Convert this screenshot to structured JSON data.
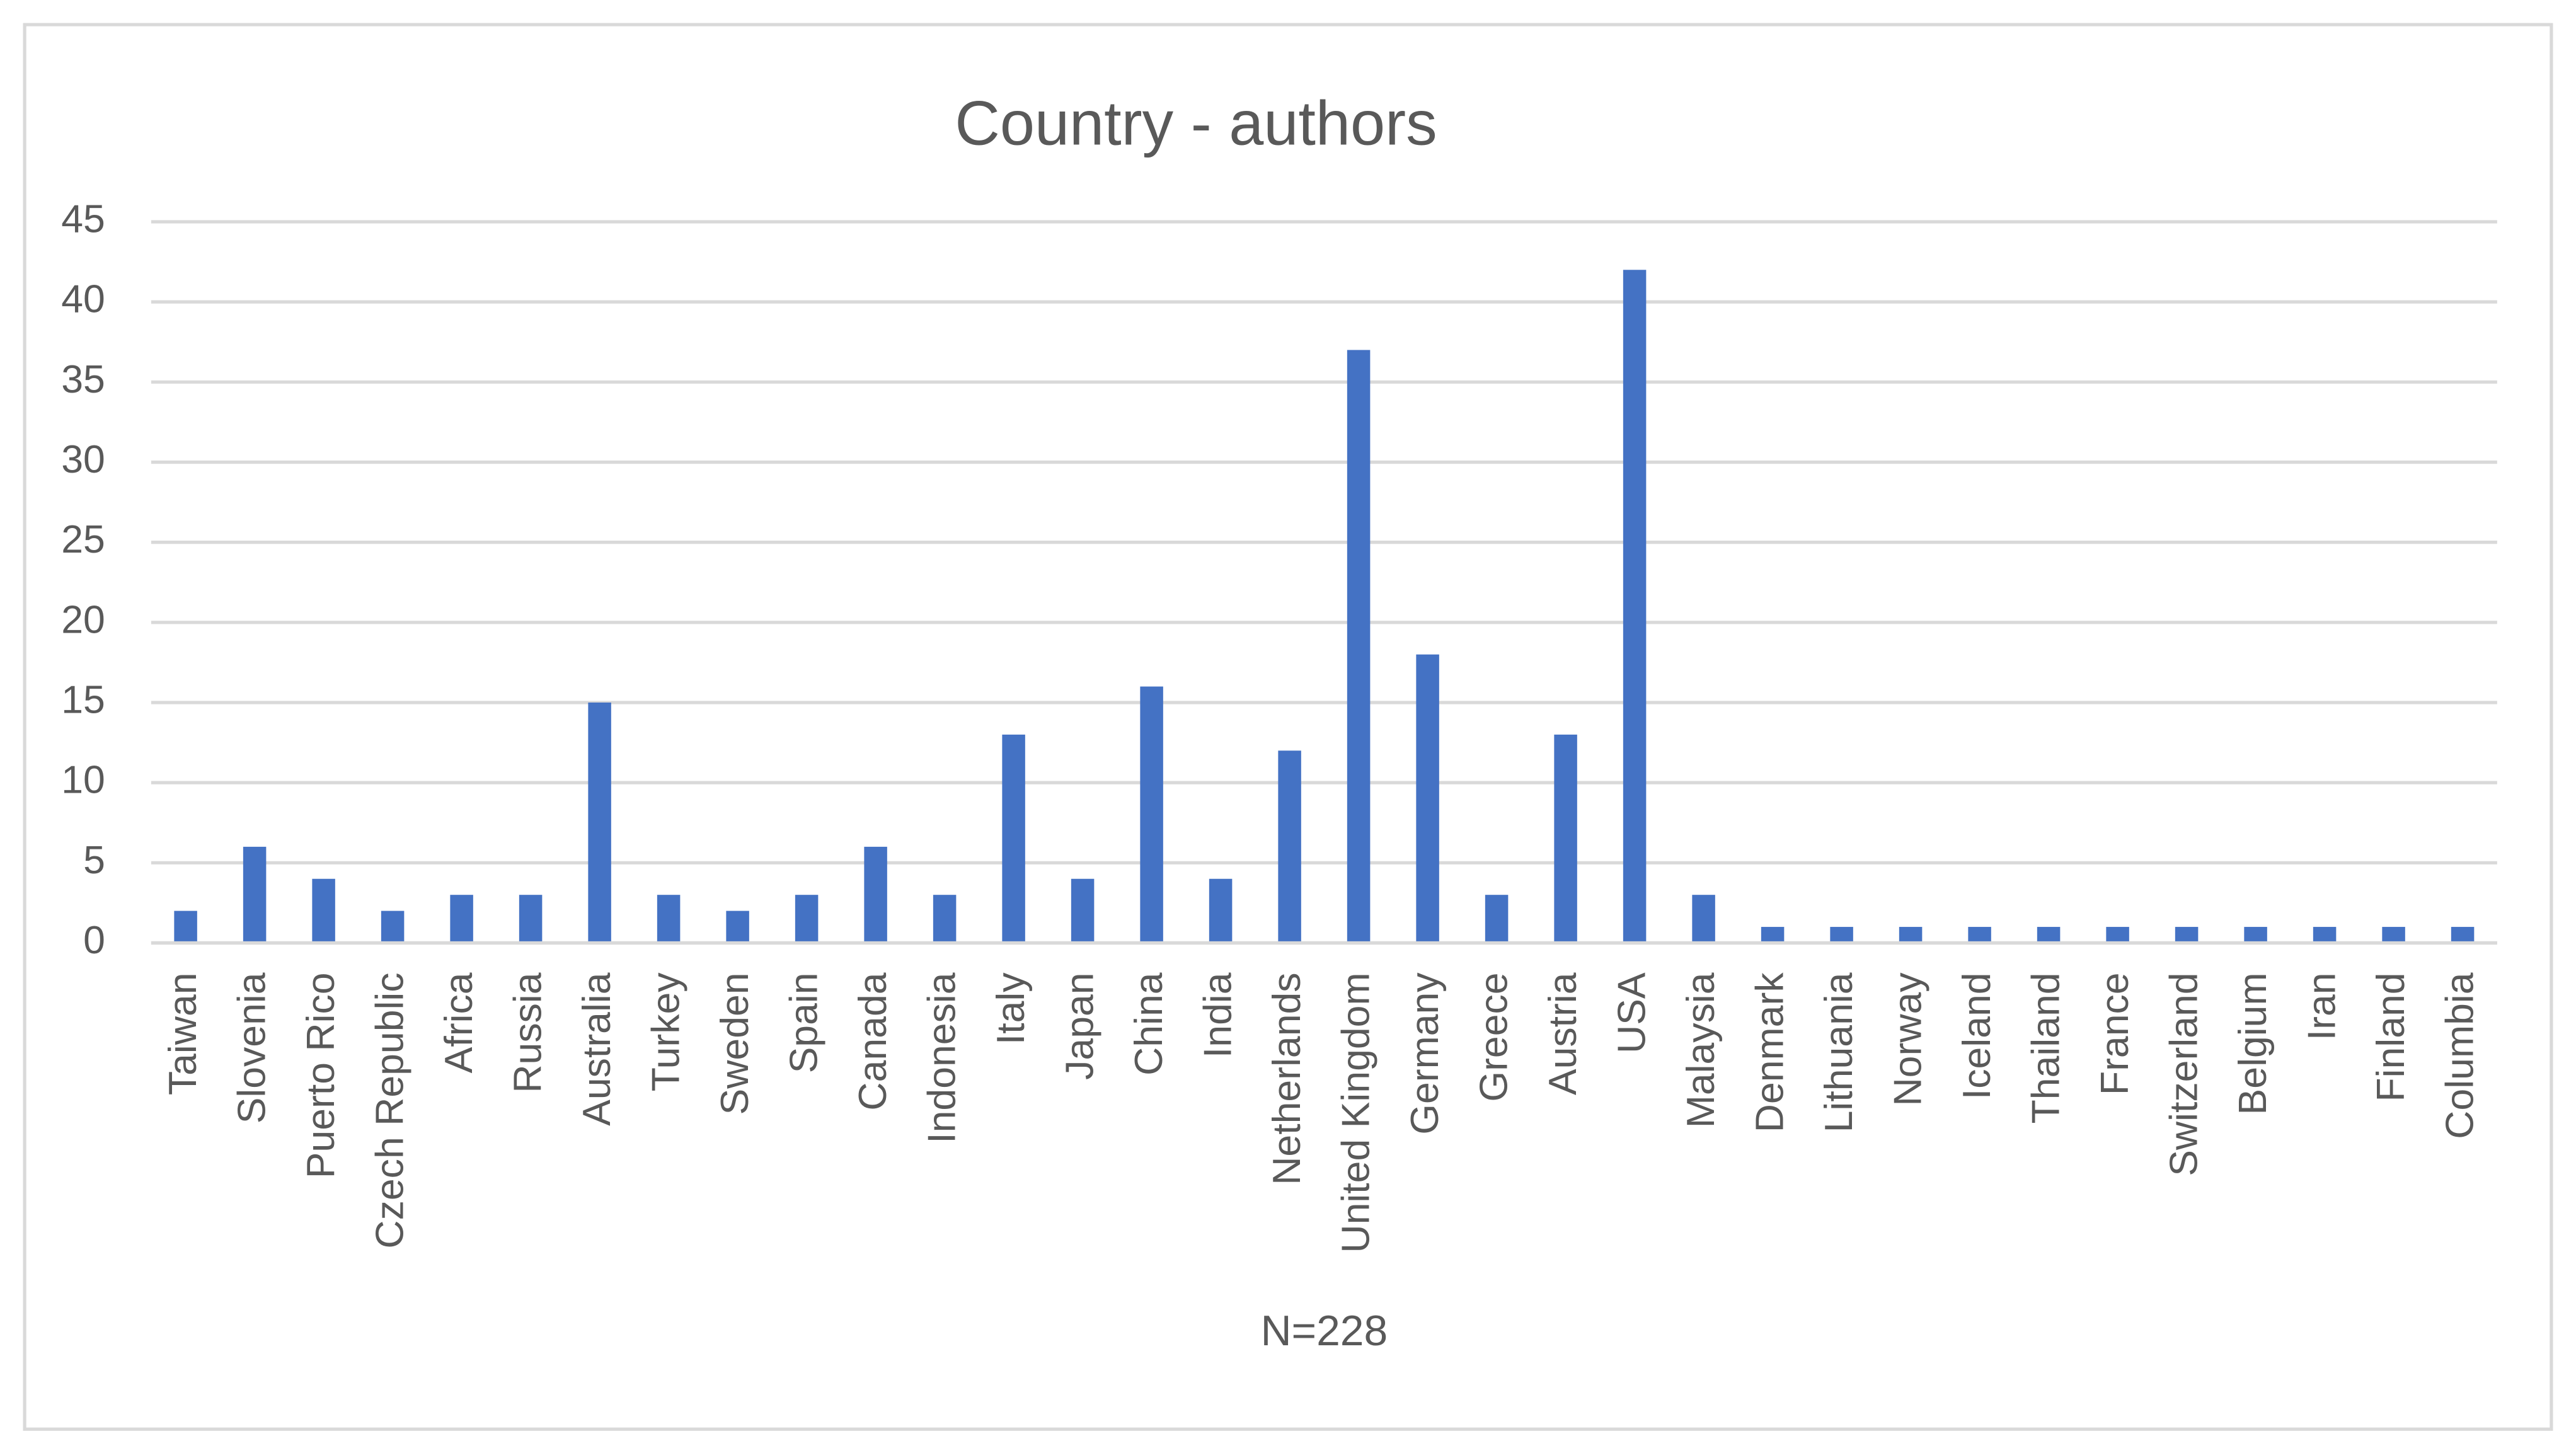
{
  "chart_data": {
    "type": "bar",
    "title": "Country - authors",
    "x_label": "N=228",
    "categories": [
      "Taiwan",
      "Slovenia",
      "Puerto Rico",
      "Czech Republic",
      "Africa",
      "Russia",
      "Australia",
      "Turkey",
      "Sweden",
      "Spain",
      "Canada",
      "Indonesia",
      "Italy",
      "Japan",
      "China",
      "India",
      "Netherlands",
      "United Kingdom",
      "Germany",
      "Greece",
      "Austria",
      "USA",
      "Malaysia",
      "Denmark",
      "Lithuania",
      "Norway",
      "Iceland",
      "Thailand",
      "France",
      "Switzerland",
      "Belgium",
      "Iran",
      "Finland",
      "Columbia"
    ],
    "values": [
      2,
      6,
      4,
      2,
      3,
      3,
      15,
      3,
      2,
      3,
      6,
      3,
      13,
      4,
      16,
      4,
      12,
      37,
      18,
      3,
      13,
      42,
      3,
      1,
      1,
      1,
      1,
      1,
      1,
      1,
      1,
      1,
      1,
      1
    ],
    "color": "#4472c4",
    "ylim": [
      0,
      45
    ],
    "yticks": [
      0,
      5,
      10,
      15,
      20,
      25,
      30,
      35,
      40,
      45
    ],
    "grid": true
  }
}
